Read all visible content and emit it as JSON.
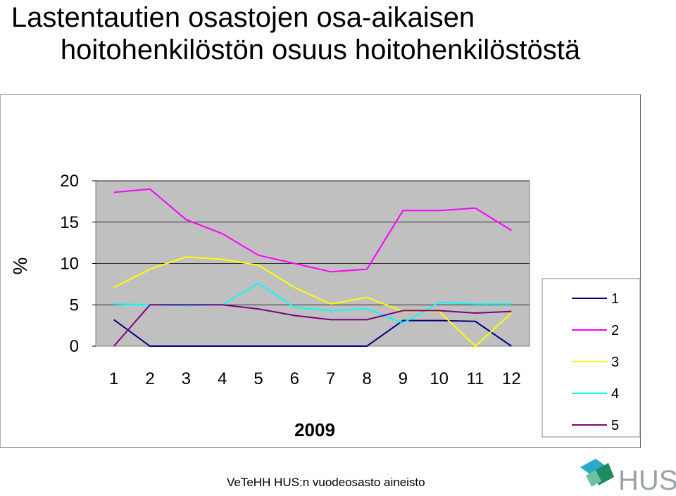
{
  "title_line1": "Lastentautien osastojen osa-aikaisen",
  "title_line2": "hoitohenkilöstön osuus hoitohenkilöstöstä",
  "footer": "VeTeHH HUS:n vuodeosasto aineisto",
  "logo_text": "HUS",
  "chart_data": {
    "type": "line",
    "title": "Lastentautien osastojen osa-aikaisen hoitohenkilöstön osuus hoitohenkilöstöstä",
    "xlabel": "2009",
    "ylabel": "%",
    "categories": [
      "1",
      "2",
      "3",
      "4",
      "5",
      "6",
      "7",
      "8",
      "9",
      "10",
      "11",
      "12"
    ],
    "yticks": [
      "0",
      "5",
      "10",
      "15",
      "20"
    ],
    "ylim": [
      0,
      20
    ],
    "grid": true,
    "plot_background": "#c0c0c0",
    "legend_position": "right",
    "series": [
      {
        "name": "1",
        "color": "#000080",
        "values": [
          3.2,
          0,
          0,
          0,
          0,
          0,
          0,
          0,
          3.1,
          3.1,
          3.0,
          0
        ]
      },
      {
        "name": "2",
        "color": "#ff00ff",
        "values": [
          18.6,
          19.0,
          15.3,
          13.6,
          11.0,
          10.0,
          9.0,
          9.3,
          16.4,
          16.4,
          16.7,
          14.0
        ]
      },
      {
        "name": "3",
        "color": "#ffff00",
        "values": [
          7.1,
          9.3,
          10.8,
          10.5,
          9.8,
          7.1,
          5.1,
          5.9,
          4.2,
          4.2,
          0,
          4.0
        ]
      },
      {
        "name": "4",
        "color": "#00ffff",
        "values": [
          5.1,
          5.0,
          4.9,
          5.0,
          7.6,
          4.7,
          4.3,
          4.5,
          2.8,
          5.3,
          5.1,
          5.1
        ]
      },
      {
        "name": "5",
        "color": "#800080",
        "values": [
          0,
          5.0,
          5.0,
          5.0,
          4.5,
          3.7,
          3.2,
          3.2,
          4.3,
          4.3,
          4.0,
          4.2
        ]
      }
    ]
  }
}
